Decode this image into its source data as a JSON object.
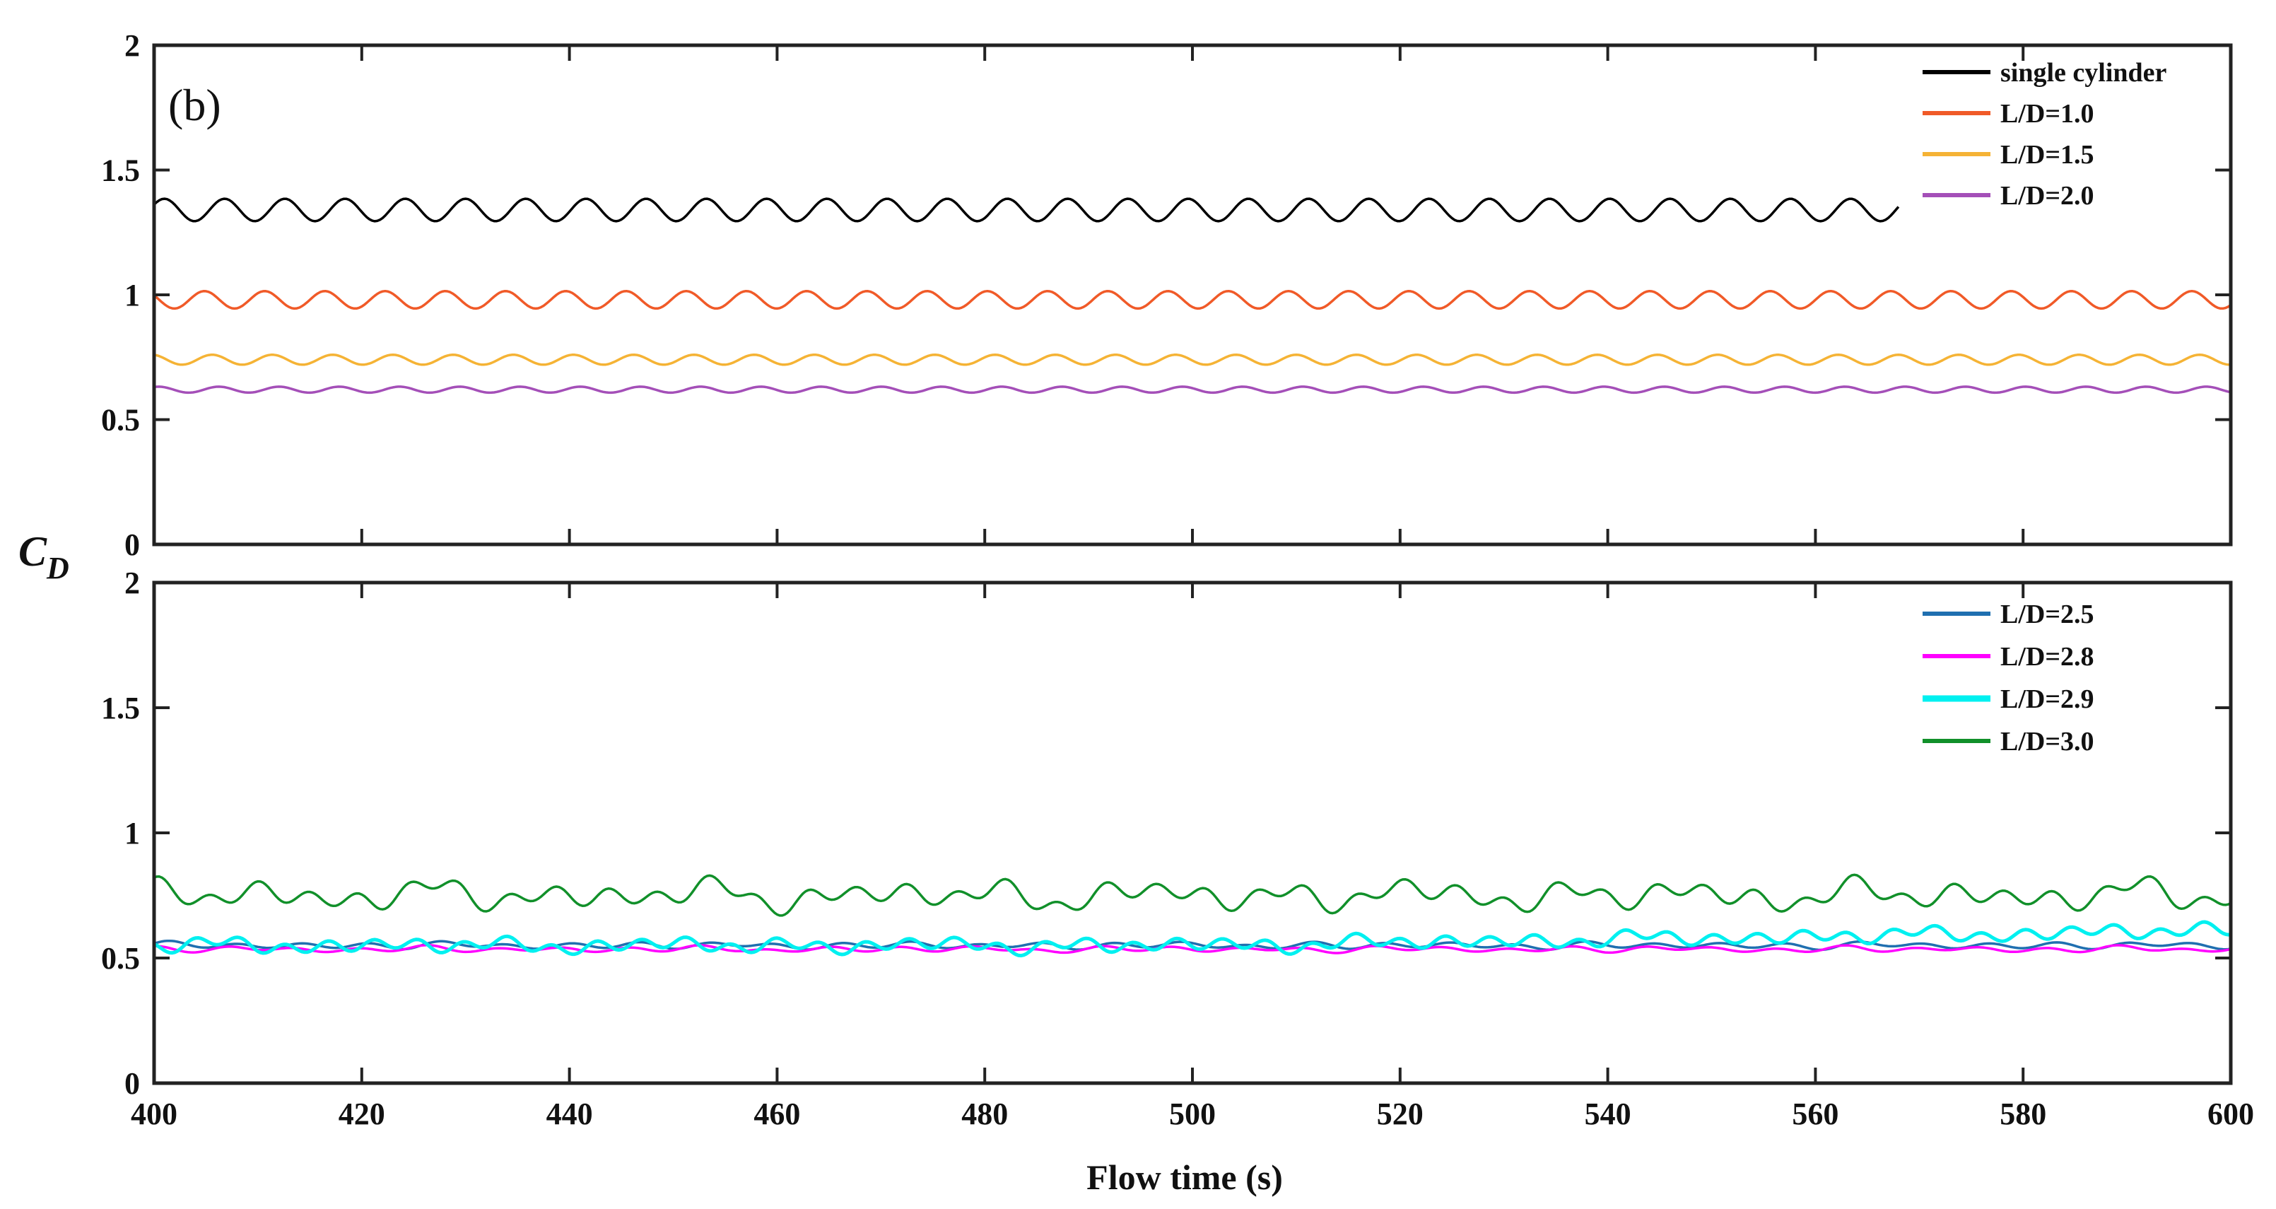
{
  "figure": {
    "panel_label": "(b)",
    "ylabel_main": "C",
    "ylabel_sub": "D",
    "xlabel": "Flow time (s)"
  },
  "chart_data": [
    {
      "type": "line",
      "xlim": [
        400,
        600
      ],
      "ylim": [
        0,
        2
      ],
      "xticks": [
        400,
        420,
        440,
        460,
        480,
        500,
        520,
        540,
        560,
        580,
        600
      ],
      "yticks": [
        0,
        0.5,
        1,
        1.5,
        2
      ],
      "ytick_labels": [
        "0",
        "0.5",
        "1",
        "1.5",
        "2"
      ],
      "xtick_labels_shown": false,
      "legend_position": "top-right",
      "grid": false,
      "series": [
        {
          "name": "single cylinder",
          "color": "#000000",
          "x_range": [
            400,
            568
          ],
          "mean": 1.34,
          "amplitude": 0.045,
          "period": 5.8,
          "phase": 0.5,
          "noise": 0
        },
        {
          "name": "L/D=1.0",
          "color": "#f05a28",
          "x_range": [
            400,
            600
          ],
          "mean": 0.98,
          "amplitude": 0.035,
          "period": 5.8,
          "phase": 2.6,
          "noise": 0
        },
        {
          "name": "L/D=1.5",
          "color": "#f5b335",
          "x_range": [
            400,
            600
          ],
          "mean": 0.74,
          "amplitude": 0.02,
          "period": 5.8,
          "phase": 1.8,
          "noise": 0
        },
        {
          "name": "L/D=2.0",
          "color": "#a44fb8",
          "x_range": [
            400,
            600
          ],
          "mean": 0.62,
          "amplitude": 0.012,
          "period": 5.8,
          "phase": 1.1,
          "noise": 0
        }
      ]
    },
    {
      "type": "line",
      "xlim": [
        400,
        600
      ],
      "ylim": [
        0,
        2
      ],
      "xticks": [
        400,
        420,
        440,
        460,
        480,
        500,
        520,
        540,
        560,
        580,
        600
      ],
      "xtick_labels": [
        "400",
        "420",
        "440",
        "460",
        "480",
        "500",
        "520",
        "540",
        "560",
        "580",
        "600"
      ],
      "yticks": [
        0,
        0.5,
        1,
        1.5,
        2
      ],
      "ytick_labels": [
        "0",
        "0.5",
        "1",
        "1.5",
        "2"
      ],
      "xtick_labels_shown": true,
      "legend_position": "top-right",
      "grid": false,
      "series": [
        {
          "name": "L/D=2.5",
          "color": "#1f6fb0",
          "x_range": [
            400,
            600
          ],
          "mean": 0.55,
          "amplitude": 0.01,
          "period": 6.5,
          "phase": 0.3,
          "noise": 0.004
        },
        {
          "name": "L/D=2.8",
          "color": "#ff00ff",
          "x_range": [
            400,
            600
          ],
          "mean": 0.535,
          "amplitude": 0.008,
          "period": 6.5,
          "phase": 1.2,
          "noise": 0.004
        },
        {
          "name": "L/D=2.9",
          "color": "#00f0f0",
          "x_range": [
            400,
            600
          ],
          "mean": 0.55,
          "amplitude": 0.02,
          "period": 4.3,
          "phase": 2.1,
          "noise": 0.01,
          "trend_end": 0.06
        },
        {
          "name": "L/D=3.0",
          "color": "#11902a",
          "x_range": [
            400,
            600
          ],
          "mean": 0.75,
          "amplitude": 0.03,
          "period": 4.8,
          "phase": 0.9,
          "noise": 0.025
        }
      ]
    }
  ]
}
